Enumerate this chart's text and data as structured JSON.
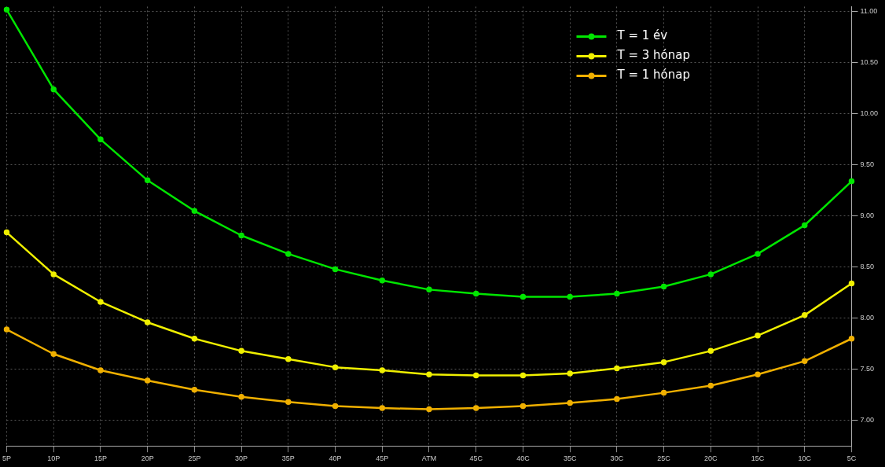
{
  "chart_data": {
    "type": "line",
    "categories": [
      "5P",
      "10P",
      "15P",
      "20P",
      "25P",
      "30P",
      "35P",
      "40P",
      "45P",
      "ATM",
      "45C",
      "40C",
      "35C",
      "30C",
      "25C",
      "20C",
      "15C",
      "10C",
      "5C"
    ],
    "series": [
      {
        "name": "T = 1 év",
        "color": "#00e600",
        "values": [
          11.02,
          10.24,
          9.75,
          9.35,
          9.05,
          8.81,
          8.63,
          8.48,
          8.37,
          8.28,
          8.24,
          8.21,
          8.21,
          8.24,
          8.31,
          8.43,
          8.63,
          8.91,
          9.34
        ]
      },
      {
        "name": "T = 3 hónap",
        "color": "#f0f000",
        "values": [
          8.84,
          8.43,
          8.16,
          7.96,
          7.8,
          7.68,
          7.6,
          7.52,
          7.49,
          7.45,
          7.44,
          7.44,
          7.46,
          7.51,
          7.57,
          7.68,
          7.83,
          8.03,
          8.34
        ]
      },
      {
        "name": "T = 1 hónap",
        "color": "#f0b000",
        "values": [
          7.89,
          7.65,
          7.49,
          7.39,
          7.3,
          7.23,
          7.18,
          7.14,
          7.12,
          7.11,
          7.12,
          7.14,
          7.17,
          7.21,
          7.27,
          7.34,
          7.45,
          7.58,
          7.8
        ]
      }
    ],
    "ylim": [
      6.75,
      11.05
    ],
    "yticks": [
      {
        "value": 7,
        "label": "7.00"
      },
      {
        "value": 7.5,
        "label": "7.50"
      },
      {
        "value": 8,
        "label": "8.00"
      },
      {
        "value": 8.5,
        "label": "8.50"
      },
      {
        "value": 9,
        "label": "9.00"
      },
      {
        "value": 9.5,
        "label": "9.50"
      },
      {
        "value": 10,
        "label": "10.00"
      },
      {
        "value": 10.5,
        "label": "10.50"
      },
      {
        "value": 11,
        "label": "11.00"
      }
    ],
    "grid": true,
    "legend": "top right",
    "marker": "circle",
    "line_style": "solid"
  }
}
